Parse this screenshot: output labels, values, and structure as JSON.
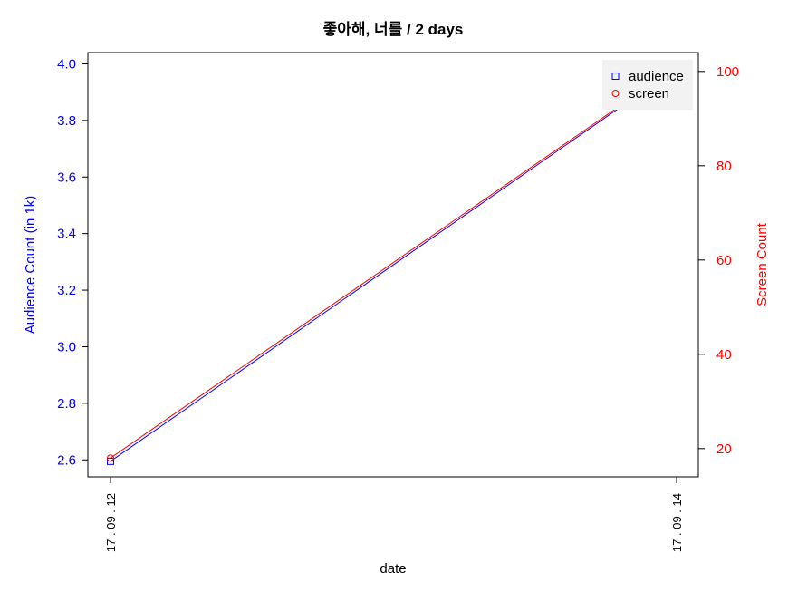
{
  "chart_data": {
    "type": "line",
    "title": "좋아해, 너를 / 2 days",
    "xlabel": "date",
    "ylabel_left": "Audience Count (in 1k)",
    "ylabel_right": "Screen Count",
    "categories": [
      "17 . 09 . 12",
      "17 . 09 . 14"
    ],
    "ylim_left": [
      2.54,
      4.04
    ],
    "ylim_right": [
      14,
      104
    ],
    "yticks_left": [
      "2.6",
      "2.8",
      "3.0",
      "3.2",
      "3.4",
      "3.6",
      "3.8",
      "4.0"
    ],
    "yticks_left_values": [
      2.6,
      2.8,
      3.0,
      3.2,
      3.4,
      3.6,
      3.8,
      4.0
    ],
    "yticks_right": [
      "20",
      "40",
      "60",
      "80",
      "100"
    ],
    "yticks_right_values": [
      20,
      40,
      60,
      80,
      100
    ],
    "series": [
      {
        "name": "audience",
        "axis": "left",
        "color": "#0000ff",
        "marker": "square",
        "values": [
          2.595,
          3.985
        ]
      },
      {
        "name": "screen",
        "axis": "right",
        "color": "#ff0000",
        "marker": "circle",
        "values": [
          18,
          101
        ]
      }
    ],
    "legend_position": "top-right",
    "grid": false
  }
}
